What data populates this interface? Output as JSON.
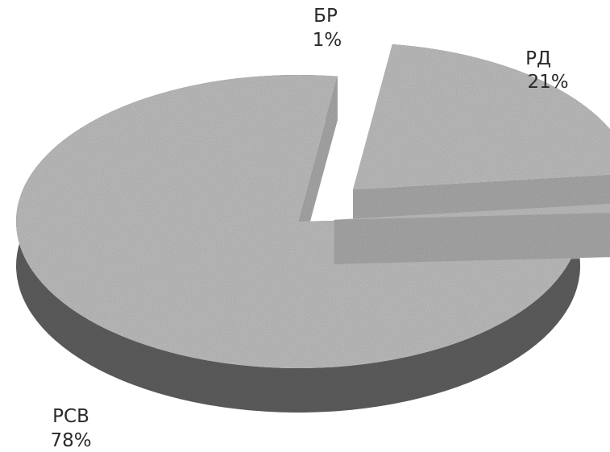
{
  "chart_data": {
    "type": "pie",
    "style": "3d-exploded",
    "grayscale": true,
    "slices": [
      {
        "label": "РД",
        "value": 21,
        "value_label": "21%"
      },
      {
        "label": "БР",
        "value": 1,
        "value_label": "1%"
      },
      {
        "label": "РСВ",
        "value": 78,
        "value_label": "78%"
      }
    ]
  }
}
